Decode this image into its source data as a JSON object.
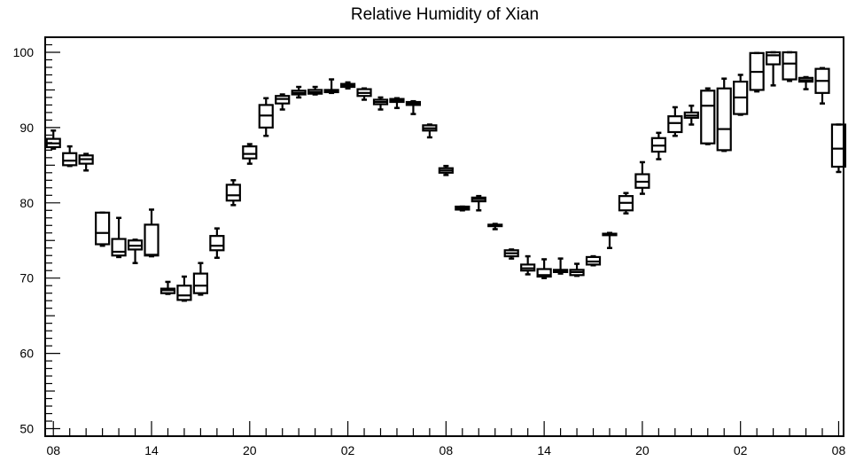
{
  "chart_data": {
    "type": "box",
    "title": "Relative Humidity of Xian",
    "xlabel": "",
    "ylabel": "",
    "ylim": [
      49,
      102
    ],
    "xlim": [
      -0.5,
      48.3
    ],
    "grid": false,
    "y_ticks": [
      50,
      60,
      70,
      80,
      90,
      100
    ],
    "x_ticks": [
      {
        "pos": 0,
        "label": "08"
      },
      {
        "pos": 6,
        "label": "14"
      },
      {
        "pos": 12,
        "label": "20"
      },
      {
        "pos": 18,
        "label": "02"
      },
      {
        "pos": 24,
        "label": "08"
      },
      {
        "pos": 30,
        "label": "14"
      },
      {
        "pos": 36,
        "label": "20"
      },
      {
        "pos": 42,
        "label": "02"
      },
      {
        "pos": 48,
        "label": "08"
      }
    ],
    "boxes": [
      {
        "x": 0,
        "min": 87.2,
        "q1": 87.4,
        "median": 87.9,
        "q3": 88.5,
        "max": 89.6
      },
      {
        "x": 1,
        "min": 84.9,
        "q1": 85.0,
        "median": 85.6,
        "q3": 86.6,
        "max": 87.5
      },
      {
        "x": 2,
        "min": 84.3,
        "q1": 85.2,
        "median": 85.8,
        "q3": 86.3,
        "max": 86.5
      },
      {
        "x": 3,
        "min": 74.3,
        "q1": 74.5,
        "median": 76.0,
        "q3": 78.7,
        "max": 78.7
      },
      {
        "x": 4,
        "min": 72.8,
        "q1": 73.0,
        "median": 73.5,
        "q3": 75.2,
        "max": 78.0
      },
      {
        "x": 5,
        "min": 72.0,
        "q1": 73.8,
        "median": 74.3,
        "q3": 75.0,
        "max": 75.1
      },
      {
        "x": 6,
        "min": 72.9,
        "q1": 73.0,
        "median": 73.1,
        "q3": 77.1,
        "max": 79.1
      },
      {
        "x": 7,
        "min": 67.9,
        "q1": 68.0,
        "median": 68.4,
        "q3": 68.6,
        "max": 69.5
      },
      {
        "x": 8,
        "min": 67.0,
        "q1": 67.1,
        "median": 67.7,
        "q3": 69.0,
        "max": 70.2
      },
      {
        "x": 9,
        "min": 67.8,
        "q1": 68.0,
        "median": 69.0,
        "q3": 70.6,
        "max": 72.0
      },
      {
        "x": 10,
        "min": 72.7,
        "q1": 73.7,
        "median": 74.3,
        "q3": 75.6,
        "max": 76.6
      },
      {
        "x": 11,
        "min": 79.7,
        "q1": 80.3,
        "median": 81.0,
        "q3": 82.4,
        "max": 83.0
      },
      {
        "x": 12,
        "min": 85.2,
        "q1": 85.9,
        "median": 86.5,
        "q3": 87.5,
        "max": 87.8
      },
      {
        "x": 13,
        "min": 88.9,
        "q1": 90.0,
        "median": 91.6,
        "q3": 93.0,
        "max": 93.9
      },
      {
        "x": 14,
        "min": 92.4,
        "q1": 93.2,
        "median": 93.8,
        "q3": 94.2,
        "max": 94.4
      },
      {
        "x": 15,
        "min": 94.0,
        "q1": 94.4,
        "median": 94.6,
        "q3": 94.9,
        "max": 95.4
      },
      {
        "x": 16,
        "min": 94.4,
        "q1": 94.5,
        "median": 94.7,
        "q3": 95.0,
        "max": 95.4
      },
      {
        "x": 17,
        "min": 94.6,
        "q1": 94.7,
        "median": 94.9,
        "q3": 95.0,
        "max": 96.4
      },
      {
        "x": 18,
        "min": 95.2,
        "q1": 95.4,
        "median": 95.6,
        "q3": 95.8,
        "max": 96.0
      },
      {
        "x": 19,
        "min": 93.7,
        "q1": 94.2,
        "median": 94.6,
        "q3": 95.1,
        "max": 95.2
      },
      {
        "x": 20,
        "min": 92.4,
        "q1": 93.1,
        "median": 93.4,
        "q3": 93.7,
        "max": 94.0
      },
      {
        "x": 21,
        "min": 92.6,
        "q1": 93.4,
        "median": 93.6,
        "q3": 93.8,
        "max": 93.9
      },
      {
        "x": 22,
        "min": 91.8,
        "q1": 93.0,
        "median": 93.2,
        "q3": 93.4,
        "max": 93.5
      },
      {
        "x": 23,
        "min": 88.7,
        "q1": 89.6,
        "median": 89.9,
        "q3": 90.3,
        "max": 90.4
      },
      {
        "x": 24,
        "min": 83.7,
        "q1": 84.0,
        "median": 84.3,
        "q3": 84.6,
        "max": 84.9
      },
      {
        "x": 25,
        "min": 79.0,
        "q1": 79.1,
        "median": 79.3,
        "q3": 79.5,
        "max": 79.5
      },
      {
        "x": 26,
        "min": 79.0,
        "q1": 80.2,
        "median": 80.5,
        "q3": 80.7,
        "max": 80.9
      },
      {
        "x": 27,
        "min": 76.5,
        "q1": 76.9,
        "median": 77.0,
        "q3": 77.1,
        "max": 77.2
      },
      {
        "x": 28,
        "min": 72.6,
        "q1": 72.9,
        "median": 73.3,
        "q3": 73.7,
        "max": 73.8
      },
      {
        "x": 29,
        "min": 70.5,
        "q1": 71.0,
        "median": 71.3,
        "q3": 71.8,
        "max": 72.9
      },
      {
        "x": 30,
        "min": 70.0,
        "q1": 70.2,
        "median": 70.4,
        "q3": 71.2,
        "max": 72.5
      },
      {
        "x": 31,
        "min": 70.6,
        "q1": 70.8,
        "median": 71.0,
        "q3": 71.1,
        "max": 72.6
      },
      {
        "x": 32,
        "min": 70.3,
        "q1": 70.4,
        "median": 70.8,
        "q3": 71.1,
        "max": 71.9
      },
      {
        "x": 33,
        "min": 71.7,
        "q1": 71.8,
        "median": 72.2,
        "q3": 72.8,
        "max": 72.9
      },
      {
        "x": 34,
        "min": 74.0,
        "q1": 75.7,
        "median": 75.8,
        "q3": 75.9,
        "max": 76.0
      },
      {
        "x": 35,
        "min": 78.6,
        "q1": 79.0,
        "median": 80.0,
        "q3": 80.9,
        "max": 81.3
      },
      {
        "x": 36,
        "min": 81.2,
        "q1": 82.0,
        "median": 82.8,
        "q3": 83.8,
        "max": 85.4
      },
      {
        "x": 37,
        "min": 85.8,
        "q1": 86.8,
        "median": 87.6,
        "q3": 88.6,
        "max": 89.3
      },
      {
        "x": 38,
        "min": 88.9,
        "q1": 89.4,
        "median": 90.6,
        "q3": 91.5,
        "max": 92.7
      },
      {
        "x": 39,
        "min": 90.4,
        "q1": 91.3,
        "median": 91.6,
        "q3": 92.0,
        "max": 92.9
      },
      {
        "x": 40,
        "min": 87.8,
        "q1": 87.9,
        "median": 92.9,
        "q3": 94.9,
        "max": 95.2
      },
      {
        "x": 41,
        "min": 86.9,
        "q1": 87.0,
        "median": 89.8,
        "q3": 95.2,
        "max": 96.5
      },
      {
        "x": 42,
        "min": 91.7,
        "q1": 91.8,
        "median": 94.0,
        "q3": 96.1,
        "max": 97.0
      },
      {
        "x": 43,
        "min": 94.8,
        "q1": 95.0,
        "median": 97.4,
        "q3": 99.9,
        "max": 99.9
      },
      {
        "x": 44,
        "min": 95.6,
        "q1": 98.4,
        "median": 99.6,
        "q3": 100.0,
        "max": 100.0
      },
      {
        "x": 45,
        "min": 96.2,
        "q1": 96.4,
        "median": 98.5,
        "q3": 100.0,
        "max": 100.0
      },
      {
        "x": 46,
        "min": 95.1,
        "q1": 96.1,
        "median": 96.3,
        "q3": 96.6,
        "max": 96.7
      },
      {
        "x": 47,
        "min": 93.2,
        "q1": 94.6,
        "median": 96.2,
        "q3": 97.8,
        "max": 97.9
      },
      {
        "x": 48,
        "min": 84.1,
        "q1": 84.8,
        "median": 87.2,
        "q3": 90.4,
        "max": 90.4
      }
    ]
  }
}
